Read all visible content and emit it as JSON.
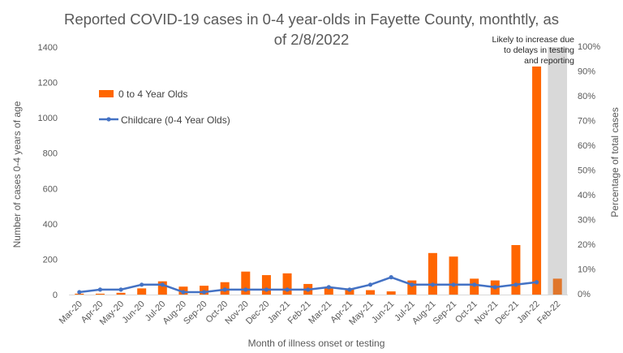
{
  "chart_data": {
    "type": "bar",
    "title_lines": [
      "Reported COVID-19 cases in 0-4 year-olds in Fayette County, monthtly, as",
      "of 2/8/2022"
    ],
    "categories": [
      "Mar-20",
      "Apr-20",
      "May-20",
      "Jun-20",
      "Jul-20",
      "Aug-20",
      "Sep-20",
      "Oct-20",
      "Nov-20",
      "Dec-20",
      "Jan-21",
      "Feb-21",
      "Mar-21",
      "Apr-21",
      "May-21",
      "Jun-21",
      "Jul-21",
      "Aug-21",
      "Sep-21",
      "Oct-21",
      "Nov-21",
      "Dec-21",
      "Jan-22",
      "Feb-22"
    ],
    "series": [
      {
        "name": "0 to 4 Year Olds",
        "kind": "bar",
        "axis": "left",
        "color": "#FF6600",
        "values": [
          5,
          5,
          10,
          35,
          75,
          45,
          50,
          70,
          130,
          110,
          120,
          60,
          40,
          35,
          25,
          18,
          80,
          235,
          215,
          90,
          80,
          280,
          1290,
          90
        ]
      },
      {
        "name": "Childcare (0-4 Year Olds)",
        "kind": "line",
        "axis": "right",
        "unit": "percent",
        "color": "#4472C4",
        "values": [
          1,
          2,
          2,
          4,
          4,
          1,
          1,
          2,
          2,
          2,
          2,
          2,
          3,
          2,
          4,
          7,
          4,
          4,
          4,
          4,
          3,
          4,
          5,
          null
        ]
      }
    ],
    "ylabel": "Number of cases 0-4 years of age",
    "ylabel_right": "Percentage of total cases",
    "xlabel": "Month of illness onset or testing",
    "ylim": [
      0,
      1400
    ],
    "yticks": [
      "0",
      "200",
      "400",
      "600",
      "800",
      "1000",
      "1200",
      "1400"
    ],
    "ylim_right": [
      0,
      100
    ],
    "yticks_right": [
      "0%",
      "10%",
      "20%",
      "30%",
      "40%",
      "50%",
      "60%",
      "70%",
      "80%",
      "90%",
      "100%"
    ],
    "annotation": {
      "lines": [
        "Likely to increase due",
        "to delays in testing",
        "and reporting"
      ],
      "shaded_categories": [
        "Feb-22"
      ],
      "shade_color": "#D9D9D9",
      "incomplete_bar_color": "#E0762B"
    },
    "legend_placement": "upper-left",
    "grid": false
  }
}
